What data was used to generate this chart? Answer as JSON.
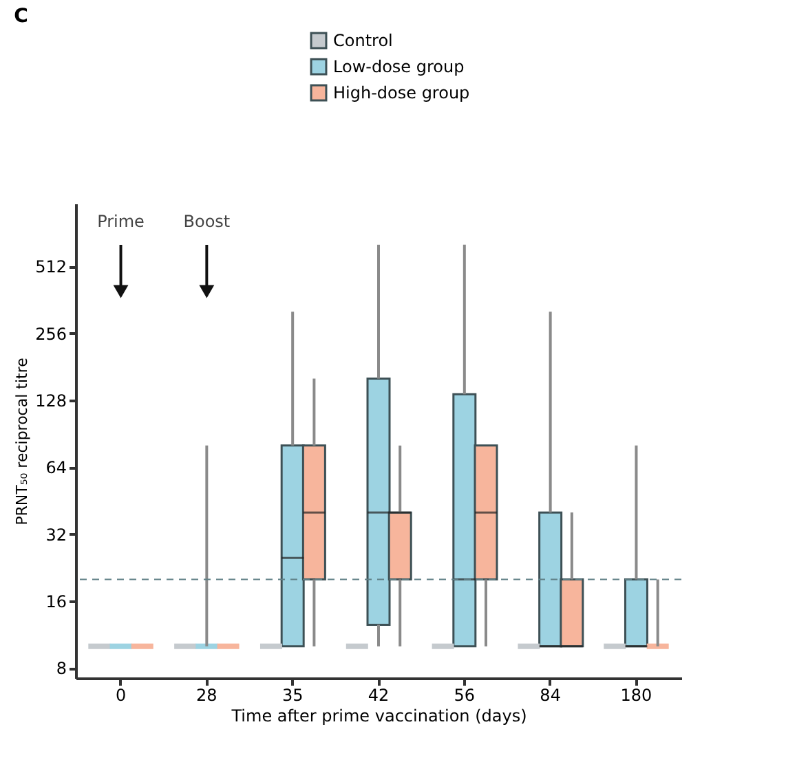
{
  "chart_data": {
    "type": "box",
    "title": "C",
    "xlabel": "Time after prime vaccination (days)",
    "ylabel": "PRNT₅₀ reciprocal titre",
    "categories": [
      "0",
      "28",
      "35",
      "42",
      "56",
      "84",
      "180"
    ],
    "series": [
      {
        "name": "Control",
        "color": "#c5cace",
        "boxes": [
          {
            "low": 10,
            "q1": 10,
            "median": 10,
            "q3": 10,
            "high": 10
          },
          {
            "low": 10,
            "q1": 10,
            "median": 10,
            "q3": 10,
            "high": 10
          },
          {
            "low": 10,
            "q1": 10,
            "median": 10,
            "q3": 10,
            "high": 10
          },
          {
            "low": 10,
            "q1": 10,
            "median": 10,
            "q3": 10,
            "high": 10
          },
          {
            "low": 10,
            "q1": 10,
            "median": 10,
            "q3": 10,
            "high": 10
          },
          {
            "low": 10,
            "q1": 10,
            "median": 10,
            "q3": 10,
            "high": 10
          },
          {
            "low": 10,
            "q1": 10,
            "median": 10,
            "q3": 10,
            "high": 10
          }
        ]
      },
      {
        "name": "Low-dose group",
        "color": "#9dd3e2",
        "boxes": [
          {
            "low": 10,
            "q1": 10,
            "median": 10,
            "q3": 10,
            "high": 10
          },
          {
            "low": 10,
            "q1": 10,
            "median": 10,
            "q3": 10,
            "high": 80
          },
          {
            "low": 10,
            "q1": 10,
            "median": 25,
            "q3": 80,
            "high": 320
          },
          {
            "low": 10,
            "q1": 12.5,
            "median": 40,
            "q3": 160,
            "high": 640
          },
          {
            "low": 10,
            "q1": 10,
            "median": 20,
            "q3": 136,
            "high": 640
          },
          {
            "low": 10,
            "q1": 10,
            "median": 10,
            "q3": 40,
            "high": 320
          },
          {
            "low": 10,
            "q1": 10,
            "median": 10,
            "q3": 20,
            "high": 80
          }
        ]
      },
      {
        "name": "High-dose group",
        "color": "#f7b59c",
        "boxes": [
          {
            "low": 10,
            "q1": 10,
            "median": 10,
            "q3": 10,
            "high": 10
          },
          {
            "low": 10,
            "q1": 10,
            "median": 10,
            "q3": 10,
            "high": 10
          },
          {
            "low": 10,
            "q1": 20,
            "median": 40,
            "q3": 80,
            "high": 160
          },
          {
            "low": 10,
            "q1": 20,
            "median": 40,
            "q3": 40,
            "high": 80
          },
          {
            "low": 10,
            "q1": 20,
            "median": 40,
            "q3": 80,
            "high": 80
          },
          {
            "low": 10,
            "q1": 10,
            "median": 10,
            "q3": 20,
            "high": 40
          },
          {
            "low": 10,
            "q1": 10,
            "median": 10,
            "q3": 10,
            "high": 20
          }
        ]
      }
    ],
    "log": true,
    "ylim": [
      7.2,
      980
    ],
    "yticks": [
      8,
      16,
      32,
      64,
      128,
      256,
      512
    ],
    "ref_lines": [
      {
        "axis": "y",
        "value": 20,
        "line_style": "dashed",
        "color": "#5f7f86"
      }
    ],
    "annotations": [
      "Prime",
      "Boost"
    ],
    "legend": "top",
    "grid": false
  }
}
